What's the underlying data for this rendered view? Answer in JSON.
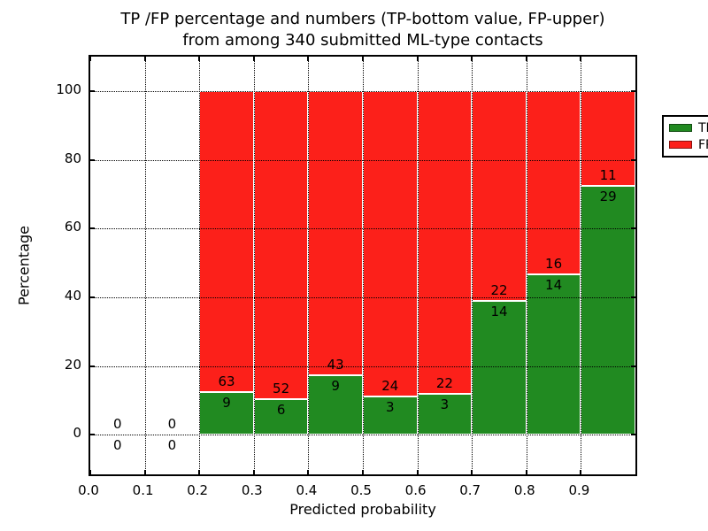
{
  "chart_data": {
    "type": "bar",
    "stacked": true,
    "orientation": "vertical",
    "title_lines": [
      "TP /FP percentage and numbers (TP-bottom value, FP-upper)",
      "from among 340 submitted ML-type contacts"
    ],
    "xlabel": "Predicted probability",
    "ylabel": "Percentage",
    "xlim": [
      0.0,
      1.0
    ],
    "ylim": [
      -11.5,
      110
    ],
    "xticks": [
      0.0,
      0.1,
      0.2,
      0.3,
      0.4,
      0.5,
      0.6,
      0.7,
      0.8,
      0.9
    ],
    "xtick_labels": [
      "0.0",
      "0.1",
      "0.2",
      "0.3",
      "0.4",
      "0.5",
      "0.6",
      "0.7",
      "0.8",
      "0.9"
    ],
    "yticks": [
      0,
      20,
      40,
      60,
      80,
      100
    ],
    "ytick_labels": [
      "0",
      "20",
      "40",
      "60",
      "80",
      "100"
    ],
    "grid": "dotted black, both axes, drawn above bars",
    "total_contacts": 340,
    "legend": {
      "position": "upper right",
      "entries": [
        {
          "label": "TP",
          "color": "#218a21"
        },
        {
          "label": "FP",
          "color": "#fc201a"
        }
      ]
    },
    "colors": {
      "tp": "#218a21",
      "fp": "#fc201a",
      "bar_edge": "#ffffff"
    },
    "bins": [
      {
        "x_start": 0.0,
        "x_end": 0.1,
        "tp_count": 0,
        "fp_count": 0,
        "tp_pct": 0,
        "fp_pct": 0,
        "has_bar": false
      },
      {
        "x_start": 0.1,
        "x_end": 0.2,
        "tp_count": 0,
        "fp_count": 0,
        "tp_pct": 0,
        "fp_pct": 0,
        "has_bar": false
      },
      {
        "x_start": 0.2,
        "x_end": 0.3,
        "tp_count": 9,
        "fp_count": 63,
        "tp_pct": 12.5,
        "fp_pct": 87.5,
        "has_bar": true
      },
      {
        "x_start": 0.3,
        "x_end": 0.4,
        "tp_count": 6,
        "fp_count": 52,
        "tp_pct": 10.34,
        "fp_pct": 89.66,
        "has_bar": true
      },
      {
        "x_start": 0.4,
        "x_end": 0.5,
        "tp_count": 9,
        "fp_count": 43,
        "tp_pct": 17.31,
        "fp_pct": 82.69,
        "has_bar": true
      },
      {
        "x_start": 0.5,
        "x_end": 0.6,
        "tp_count": 3,
        "fp_count": 24,
        "tp_pct": 11.11,
        "fp_pct": 88.89,
        "has_bar": true
      },
      {
        "x_start": 0.6,
        "x_end": 0.7,
        "tp_count": 3,
        "fp_count": 22,
        "tp_pct": 12.0,
        "fp_pct": 88.0,
        "has_bar": true
      },
      {
        "x_start": 0.7,
        "x_end": 0.8,
        "tp_count": 14,
        "fp_count": 22,
        "tp_pct": 38.89,
        "fp_pct": 61.11,
        "has_bar": true
      },
      {
        "x_start": 0.8,
        "x_end": 0.9,
        "tp_count": 14,
        "fp_count": 16,
        "tp_pct": 46.67,
        "fp_pct": 53.33,
        "has_bar": true
      },
      {
        "x_start": 0.9,
        "x_end": 1.0,
        "tp_count": 29,
        "fp_count": 11,
        "tp_pct": 72.5,
        "fp_pct": 27.5,
        "has_bar": true
      }
    ]
  }
}
